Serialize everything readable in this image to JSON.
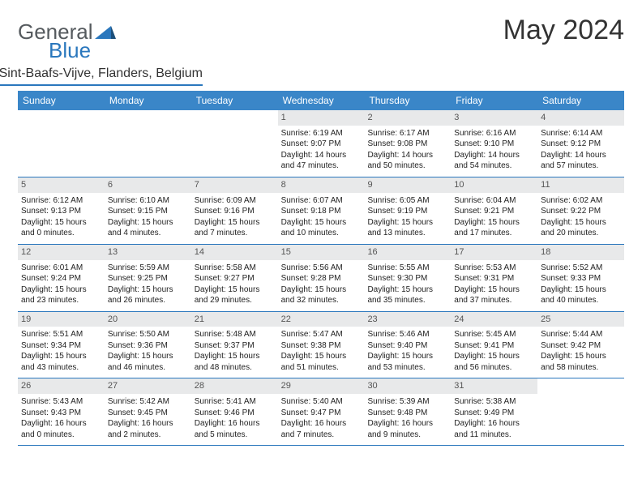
{
  "brand": {
    "text1": "General",
    "text2": "Blue"
  },
  "title": "May 2024",
  "location": "Sint-Baafs-Vijve, Flanders, Belgium",
  "colors": {
    "accent": "#2a77bd",
    "header_bg": "#3a86c8",
    "daynum_bg": "#e8e9ea",
    "text": "#222222"
  },
  "day_headers": [
    "Sunday",
    "Monday",
    "Tuesday",
    "Wednesday",
    "Thursday",
    "Friday",
    "Saturday"
  ],
  "weeks": [
    [
      {
        "n": "",
        "sr": "",
        "ss": "",
        "dl1": "",
        "dl2": "",
        "empty": true
      },
      {
        "n": "",
        "sr": "",
        "ss": "",
        "dl1": "",
        "dl2": "",
        "empty": true
      },
      {
        "n": "",
        "sr": "",
        "ss": "",
        "dl1": "",
        "dl2": "",
        "empty": true
      },
      {
        "n": "1",
        "sr": "Sunrise: 6:19 AM",
        "ss": "Sunset: 9:07 PM",
        "dl1": "Daylight: 14 hours",
        "dl2": "and 47 minutes."
      },
      {
        "n": "2",
        "sr": "Sunrise: 6:17 AM",
        "ss": "Sunset: 9:08 PM",
        "dl1": "Daylight: 14 hours",
        "dl2": "and 50 minutes."
      },
      {
        "n": "3",
        "sr": "Sunrise: 6:16 AM",
        "ss": "Sunset: 9:10 PM",
        "dl1": "Daylight: 14 hours",
        "dl2": "and 54 minutes."
      },
      {
        "n": "4",
        "sr": "Sunrise: 6:14 AM",
        "ss": "Sunset: 9:12 PM",
        "dl1": "Daylight: 14 hours",
        "dl2": "and 57 minutes."
      }
    ],
    [
      {
        "n": "5",
        "sr": "Sunrise: 6:12 AM",
        "ss": "Sunset: 9:13 PM",
        "dl1": "Daylight: 15 hours",
        "dl2": "and 0 minutes."
      },
      {
        "n": "6",
        "sr": "Sunrise: 6:10 AM",
        "ss": "Sunset: 9:15 PM",
        "dl1": "Daylight: 15 hours",
        "dl2": "and 4 minutes."
      },
      {
        "n": "7",
        "sr": "Sunrise: 6:09 AM",
        "ss": "Sunset: 9:16 PM",
        "dl1": "Daylight: 15 hours",
        "dl2": "and 7 minutes."
      },
      {
        "n": "8",
        "sr": "Sunrise: 6:07 AM",
        "ss": "Sunset: 9:18 PM",
        "dl1": "Daylight: 15 hours",
        "dl2": "and 10 minutes."
      },
      {
        "n": "9",
        "sr": "Sunrise: 6:05 AM",
        "ss": "Sunset: 9:19 PM",
        "dl1": "Daylight: 15 hours",
        "dl2": "and 13 minutes."
      },
      {
        "n": "10",
        "sr": "Sunrise: 6:04 AM",
        "ss": "Sunset: 9:21 PM",
        "dl1": "Daylight: 15 hours",
        "dl2": "and 17 minutes."
      },
      {
        "n": "11",
        "sr": "Sunrise: 6:02 AM",
        "ss": "Sunset: 9:22 PM",
        "dl1": "Daylight: 15 hours",
        "dl2": "and 20 minutes."
      }
    ],
    [
      {
        "n": "12",
        "sr": "Sunrise: 6:01 AM",
        "ss": "Sunset: 9:24 PM",
        "dl1": "Daylight: 15 hours",
        "dl2": "and 23 minutes."
      },
      {
        "n": "13",
        "sr": "Sunrise: 5:59 AM",
        "ss": "Sunset: 9:25 PM",
        "dl1": "Daylight: 15 hours",
        "dl2": "and 26 minutes."
      },
      {
        "n": "14",
        "sr": "Sunrise: 5:58 AM",
        "ss": "Sunset: 9:27 PM",
        "dl1": "Daylight: 15 hours",
        "dl2": "and 29 minutes."
      },
      {
        "n": "15",
        "sr": "Sunrise: 5:56 AM",
        "ss": "Sunset: 9:28 PM",
        "dl1": "Daylight: 15 hours",
        "dl2": "and 32 minutes."
      },
      {
        "n": "16",
        "sr": "Sunrise: 5:55 AM",
        "ss": "Sunset: 9:30 PM",
        "dl1": "Daylight: 15 hours",
        "dl2": "and 35 minutes."
      },
      {
        "n": "17",
        "sr": "Sunrise: 5:53 AM",
        "ss": "Sunset: 9:31 PM",
        "dl1": "Daylight: 15 hours",
        "dl2": "and 37 minutes."
      },
      {
        "n": "18",
        "sr": "Sunrise: 5:52 AM",
        "ss": "Sunset: 9:33 PM",
        "dl1": "Daylight: 15 hours",
        "dl2": "and 40 minutes."
      }
    ],
    [
      {
        "n": "19",
        "sr": "Sunrise: 5:51 AM",
        "ss": "Sunset: 9:34 PM",
        "dl1": "Daylight: 15 hours",
        "dl2": "and 43 minutes."
      },
      {
        "n": "20",
        "sr": "Sunrise: 5:50 AM",
        "ss": "Sunset: 9:36 PM",
        "dl1": "Daylight: 15 hours",
        "dl2": "and 46 minutes."
      },
      {
        "n": "21",
        "sr": "Sunrise: 5:48 AM",
        "ss": "Sunset: 9:37 PM",
        "dl1": "Daylight: 15 hours",
        "dl2": "and 48 minutes."
      },
      {
        "n": "22",
        "sr": "Sunrise: 5:47 AM",
        "ss": "Sunset: 9:38 PM",
        "dl1": "Daylight: 15 hours",
        "dl2": "and 51 minutes."
      },
      {
        "n": "23",
        "sr": "Sunrise: 5:46 AM",
        "ss": "Sunset: 9:40 PM",
        "dl1": "Daylight: 15 hours",
        "dl2": "and 53 minutes."
      },
      {
        "n": "24",
        "sr": "Sunrise: 5:45 AM",
        "ss": "Sunset: 9:41 PM",
        "dl1": "Daylight: 15 hours",
        "dl2": "and 56 minutes."
      },
      {
        "n": "25",
        "sr": "Sunrise: 5:44 AM",
        "ss": "Sunset: 9:42 PM",
        "dl1": "Daylight: 15 hours",
        "dl2": "and 58 minutes."
      }
    ],
    [
      {
        "n": "26",
        "sr": "Sunrise: 5:43 AM",
        "ss": "Sunset: 9:43 PM",
        "dl1": "Daylight: 16 hours",
        "dl2": "and 0 minutes."
      },
      {
        "n": "27",
        "sr": "Sunrise: 5:42 AM",
        "ss": "Sunset: 9:45 PM",
        "dl1": "Daylight: 16 hours",
        "dl2": "and 2 minutes."
      },
      {
        "n": "28",
        "sr": "Sunrise: 5:41 AM",
        "ss": "Sunset: 9:46 PM",
        "dl1": "Daylight: 16 hours",
        "dl2": "and 5 minutes."
      },
      {
        "n": "29",
        "sr": "Sunrise: 5:40 AM",
        "ss": "Sunset: 9:47 PM",
        "dl1": "Daylight: 16 hours",
        "dl2": "and 7 minutes."
      },
      {
        "n": "30",
        "sr": "Sunrise: 5:39 AM",
        "ss": "Sunset: 9:48 PM",
        "dl1": "Daylight: 16 hours",
        "dl2": "and 9 minutes."
      },
      {
        "n": "31",
        "sr": "Sunrise: 5:38 AM",
        "ss": "Sunset: 9:49 PM",
        "dl1": "Daylight: 16 hours",
        "dl2": "and 11 minutes."
      },
      {
        "n": "",
        "sr": "",
        "ss": "",
        "dl1": "",
        "dl2": "",
        "empty": true
      }
    ]
  ]
}
